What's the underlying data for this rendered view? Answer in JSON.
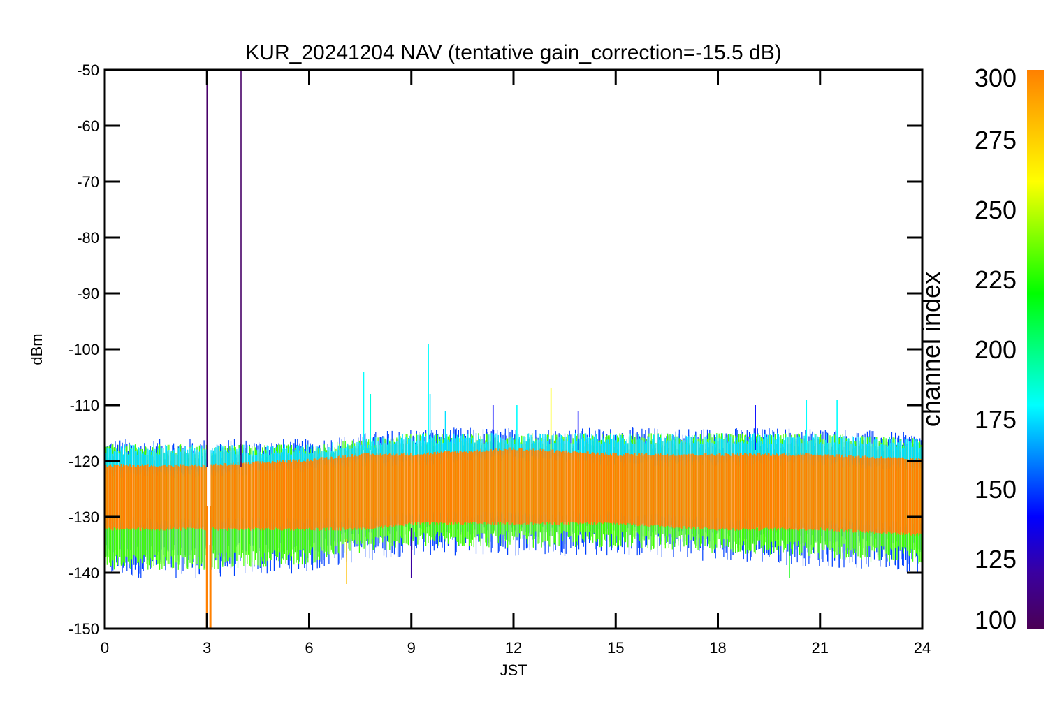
{
  "chart_data": {
    "type": "line",
    "title": "KUR_20241204 NAV (tentative gain_correction=-15.5 dB)",
    "xlabel": "JST",
    "ylabel": "dBm",
    "xlim": [
      0,
      24
    ],
    "ylim": [
      -150,
      -50
    ],
    "x_ticks": [
      0,
      3,
      6,
      9,
      12,
      15,
      18,
      21,
      24
    ],
    "y_ticks": [
      -50,
      -60,
      -70,
      -80,
      -90,
      -100,
      -110,
      -120,
      -130,
      -140,
      -150
    ],
    "grid": false,
    "legend": "none",
    "colorbar": {
      "label": "channel index",
      "range": [
        100,
        300
      ],
      "ticks": [
        300,
        275,
        250,
        225,
        200,
        175,
        150,
        125,
        100
      ],
      "colormap": [
        "#4b0055",
        "#3a00a0",
        "#0000ff",
        "#0080ff",
        "#00ffff",
        "#00ff80",
        "#00ff00",
        "#80ff00",
        "#ffff00",
        "#ffc000",
        "#ff8000"
      ]
    },
    "series": [
      {
        "description_value": "noise band; lower channels mostly near -118 to -122 dBm, higher channels near -125 to -130 dBm",
        "band": {
          "x": [
            0,
            3,
            6,
            7.5,
            9,
            12,
            15,
            18,
            21,
            24
          ],
          "upper_envelope": [
            -118,
            -118,
            -118,
            -117,
            -116,
            -116,
            -116,
            -116,
            -116,
            -117
          ],
          "core_top": [
            -122,
            -122,
            -121,
            -120,
            -120,
            -119,
            -120,
            -120,
            -120,
            -121
          ],
          "core_bottom": [
            -131,
            -131,
            -131,
            -131,
            -130,
            -130,
            -130,
            -131,
            -131,
            -132
          ],
          "lower_envelope": [
            -138,
            -138,
            -137,
            -135,
            -134,
            -134,
            -134,
            -135,
            -136,
            -137
          ]
        },
        "spikes": [
          {
            "x": 3.0,
            "y_top": -50,
            "y_bottom": -121,
            "channel": 105
          },
          {
            "x": 4.0,
            "y_top": -50,
            "y_bottom": -121,
            "channel": 105
          },
          {
            "x": 3.0,
            "y_top": -128,
            "y_bottom": -150,
            "channel": 300
          },
          {
            "x": 3.1,
            "y_top": -128,
            "y_bottom": -150,
            "channel": 300
          },
          {
            "x": 7.6,
            "y_top": -104,
            "y_bottom": -118,
            "channel": 180
          },
          {
            "x": 7.8,
            "y_top": -108,
            "y_bottom": -118,
            "channel": 185
          },
          {
            "x": 9.5,
            "y_top": -99,
            "y_bottom": -118,
            "channel": 180
          },
          {
            "x": 9.55,
            "y_top": -108,
            "y_bottom": -118,
            "channel": 175
          },
          {
            "x": 10.0,
            "y_top": -111,
            "y_bottom": -118,
            "channel": 175
          },
          {
            "x": 11.4,
            "y_top": -110,
            "y_bottom": -118,
            "channel": 140
          },
          {
            "x": 12.1,
            "y_top": -110,
            "y_bottom": -118,
            "channel": 180
          },
          {
            "x": 13.1,
            "y_top": -107,
            "y_bottom": -118,
            "channel": 260
          },
          {
            "x": 13.9,
            "y_top": -111,
            "y_bottom": -118,
            "channel": 140
          },
          {
            "x": 19.1,
            "y_top": -110,
            "y_bottom": -118,
            "channel": 140
          },
          {
            "x": 20.6,
            "y_top": -109,
            "y_bottom": -118,
            "channel": 180
          },
          {
            "x": 21.5,
            "y_top": -109,
            "y_bottom": -118,
            "channel": 180
          },
          {
            "x": 7.1,
            "y_top": -134,
            "y_bottom": -142,
            "channel": 280
          },
          {
            "x": 9.0,
            "y_top": -132,
            "y_bottom": -141,
            "channel": 120
          },
          {
            "x": 20.1,
            "y_top": -132,
            "y_bottom": -141,
            "channel": 220
          }
        ],
        "gap": {
          "x_start": 3.0,
          "x_end": 3.1
        }
      }
    ]
  }
}
